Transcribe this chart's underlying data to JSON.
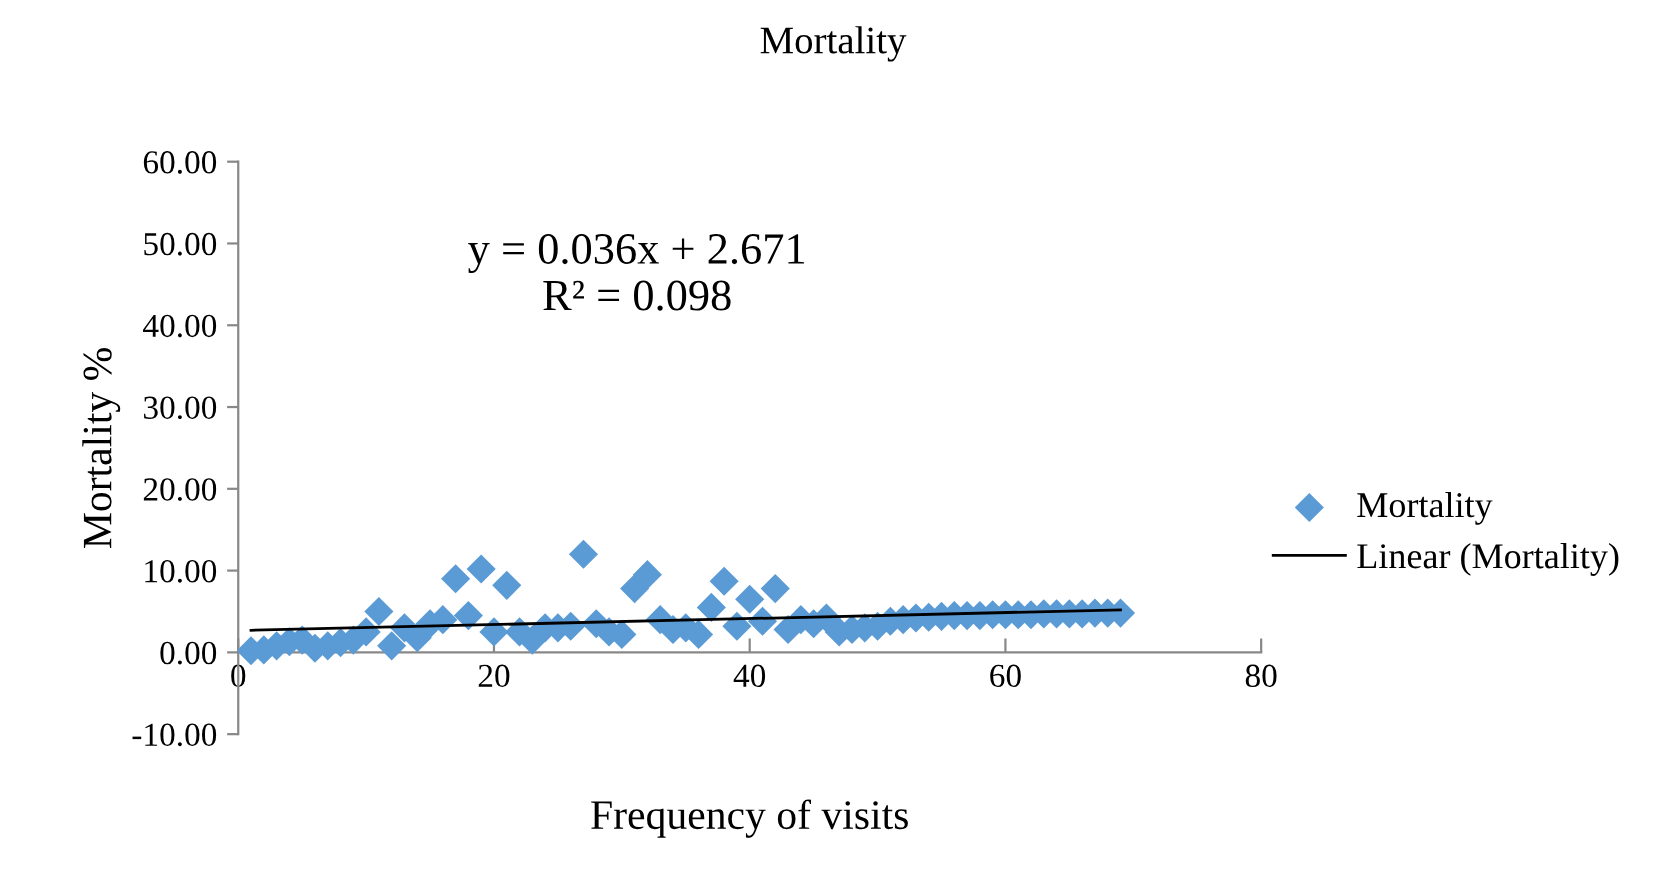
{
  "chart_data": {
    "type": "scatter",
    "title": "Mortality",
    "xlabel": "Frequency of visits",
    "ylabel": "Mortality %",
    "xlim": [
      0,
      80
    ],
    "xticks": [
      0,
      20,
      40,
      60,
      80
    ],
    "ylim": [
      -10,
      60
    ],
    "yticks": [
      {
        "value": -10,
        "label": "-10.00"
      },
      {
        "value": 0,
        "label": "0.00"
      },
      {
        "value": 10,
        "label": "10.00"
      },
      {
        "value": 20,
        "label": "20.00"
      },
      {
        "value": 30,
        "label": "30.00"
      },
      {
        "value": 40,
        "label": "40.00"
      },
      {
        "value": 50,
        "label": "50.00"
      },
      {
        "value": 60,
        "label": "60.00"
      }
    ],
    "annotations": [
      "y = 0.036x + 2.671\nR² = 0.098"
    ],
    "legend": "right",
    "grid": false,
    "series": [
      {
        "name": "Mortality",
        "marker": "diamond",
        "color": "#5b9bd5",
        "x": [
          1,
          2,
          3,
          4,
          5,
          6,
          7,
          8,
          9,
          10,
          11,
          12,
          13,
          14,
          15,
          16,
          17,
          18,
          19,
          20,
          21,
          22,
          23,
          24,
          25,
          26,
          27,
          28,
          29,
          30,
          31,
          32,
          33,
          34,
          35,
          36,
          37,
          38,
          39,
          40,
          41,
          42,
          43,
          44,
          45,
          46,
          47,
          48,
          49,
          50,
          51,
          52,
          53,
          54,
          55,
          56,
          57,
          58,
          59,
          60,
          61,
          62,
          63,
          64,
          65,
          66,
          67,
          68,
          69
        ],
        "values": [
          0.2,
          0.3,
          0.8,
          1.3,
          1.5,
          0.5,
          0.8,
          1.2,
          1.5,
          2.5,
          5.0,
          0.8,
          3.0,
          1.8,
          3.5,
          4.0,
          9.0,
          4.5,
          10.2,
          2.5,
          8.2,
          2.5,
          1.5,
          3.0,
          3.0,
          3.2,
          12.0,
          3.5,
          2.5,
          2.2,
          7.8,
          9.5,
          4.0,
          2.8,
          3.0,
          2.2,
          5.5,
          8.7,
          3.2,
          6.5,
          3.8,
          7.8,
          2.8,
          4.0,
          3.5,
          4.2,
          2.5,
          2.8,
          3.0,
          3.2,
          3.8,
          4.0,
          4.2,
          4.3,
          4.4,
          4.5,
          4.5,
          4.5,
          4.6,
          4.6,
          4.6,
          4.6,
          4.7,
          4.7,
          4.7,
          4.7,
          4.8,
          4.8,
          4.8
        ]
      },
      {
        "name": "Linear (Mortality)",
        "type": "line",
        "marker": "none",
        "color": "#000000",
        "x": [
          1,
          69
        ],
        "values": [
          2.7,
          5.2
        ]
      }
    ]
  }
}
